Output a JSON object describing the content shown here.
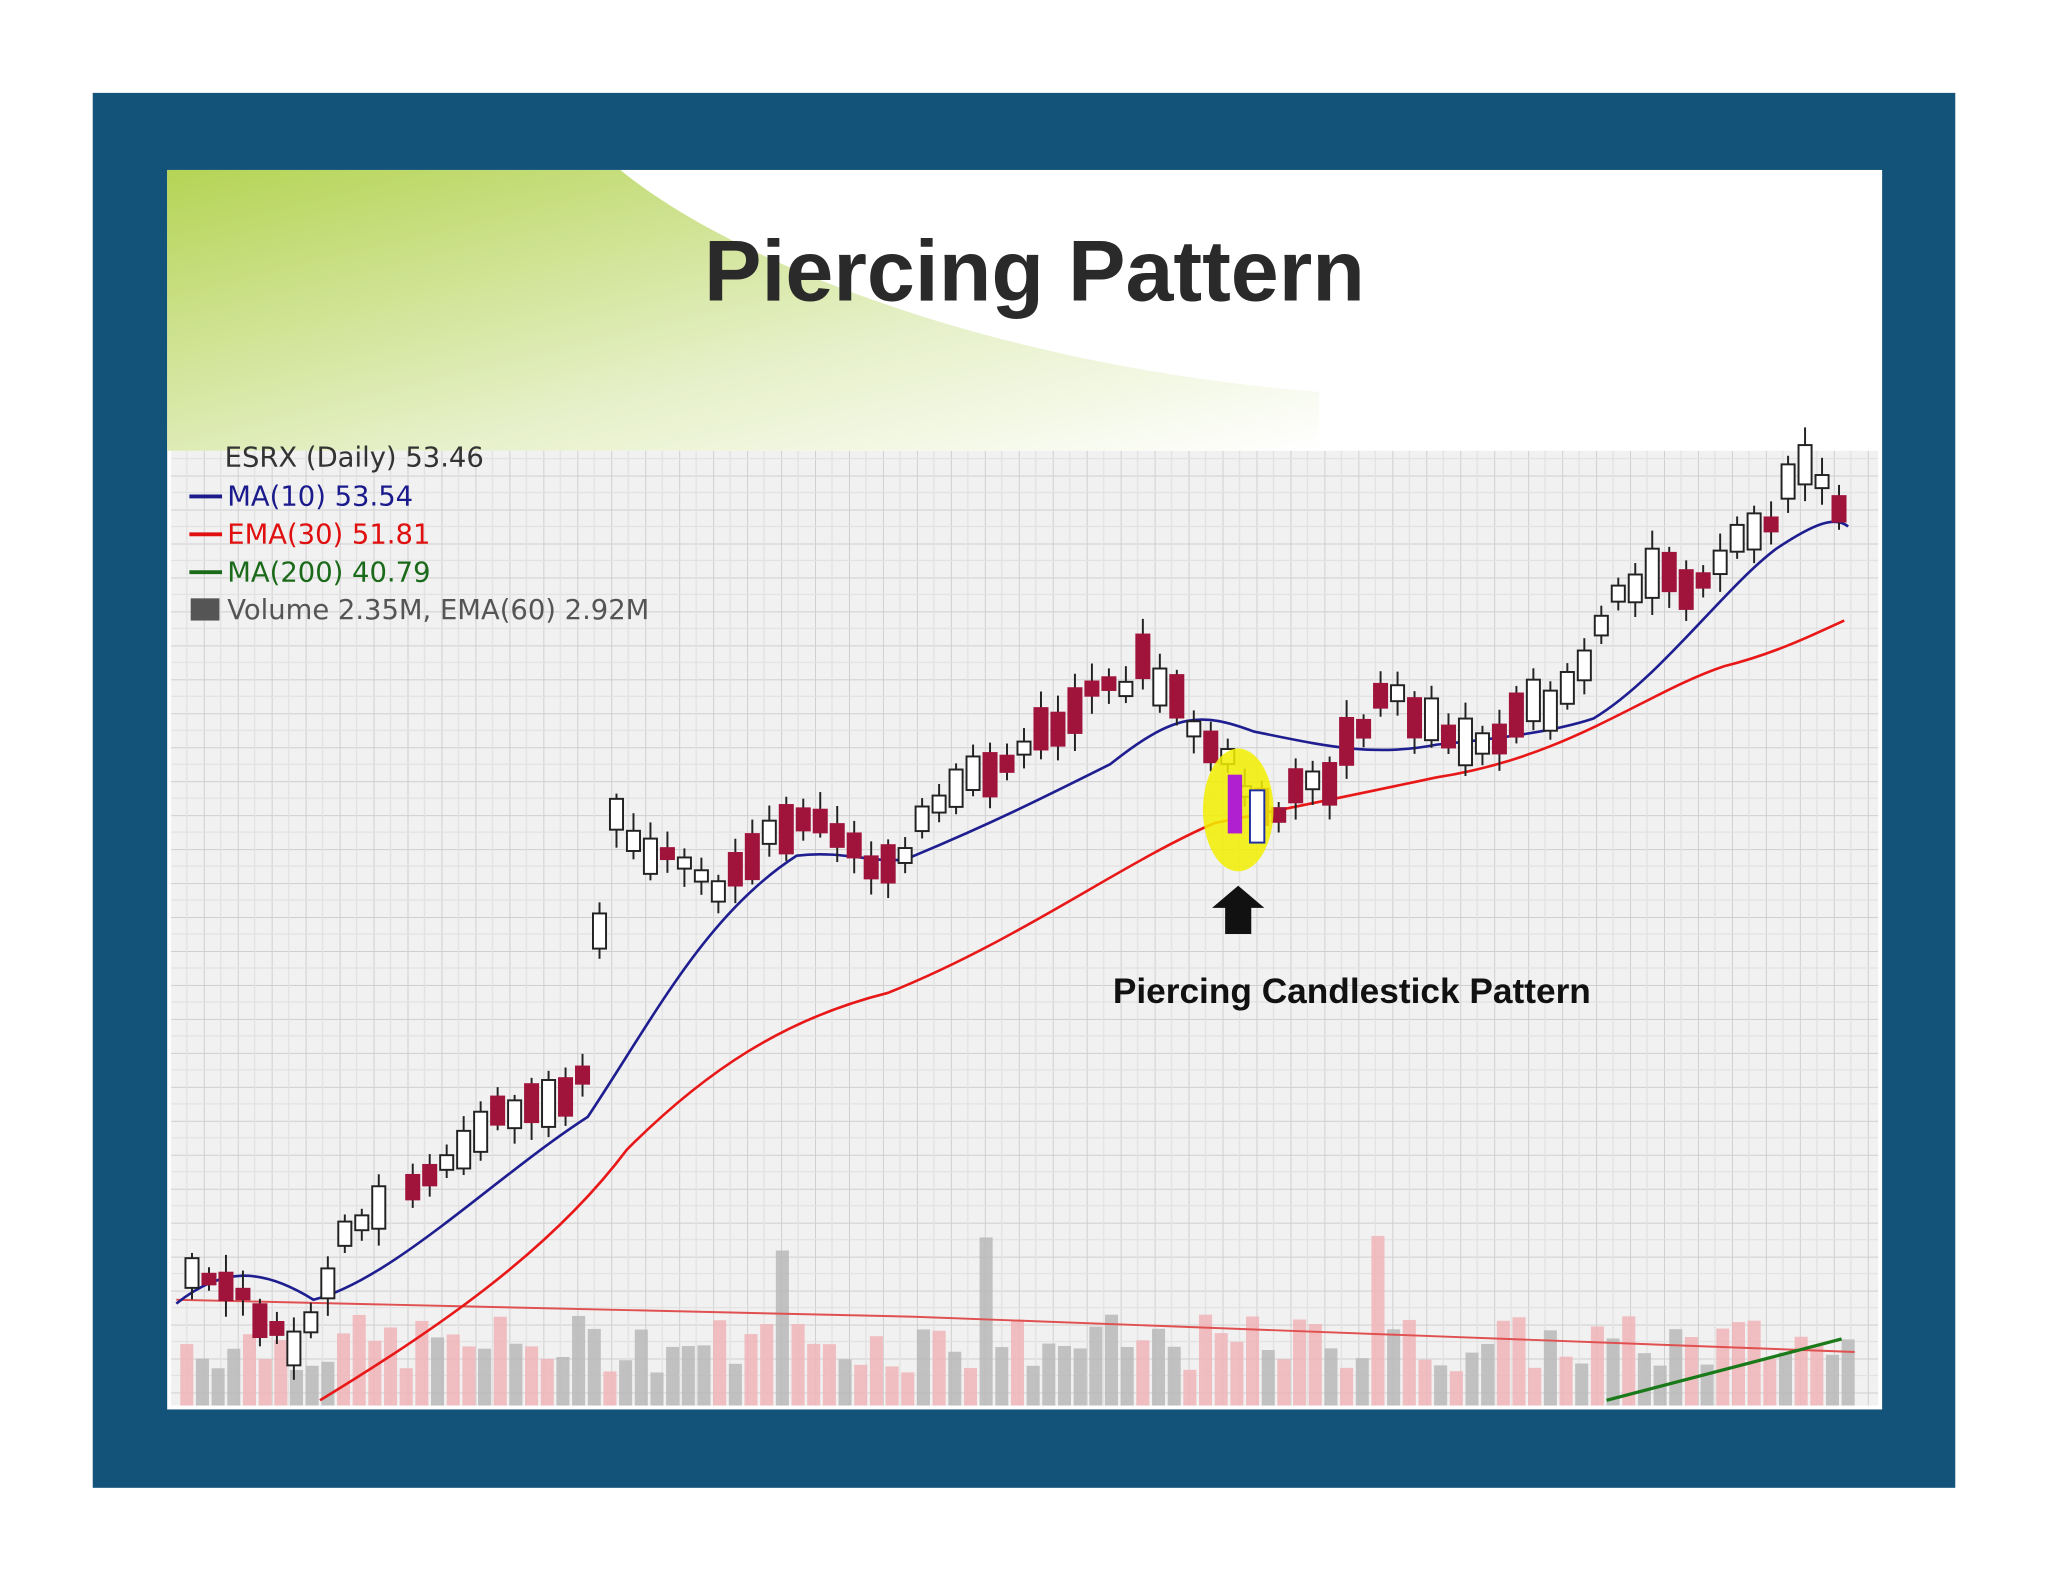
{
  "slide": {
    "title": "Piercing Pattern",
    "chart": {
      "header": "ESRX (Daily) 53.46",
      "legend": [
        "MA(10) 53.54",
        "EMA(30) 51.81",
        "MA(200) 40.79",
        "Volume 2.35M, EMA(60) 2.92M"
      ],
      "annotation": "Piercing Candlestick Pattern"
    }
  }
}
